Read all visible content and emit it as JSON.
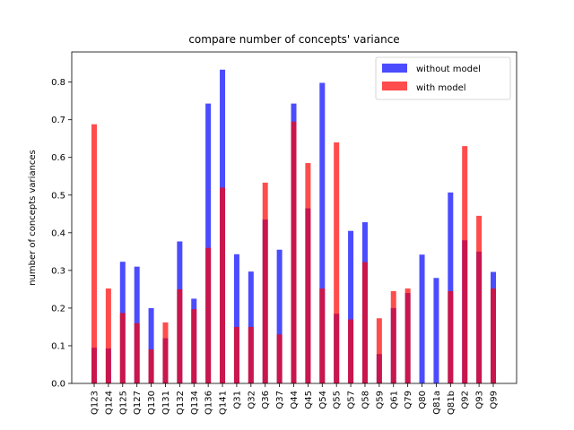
{
  "chart_data": {
    "type": "bar",
    "title": "compare number of concepts' variance",
    "xlabel": "",
    "ylabel": "number of concepts variances",
    "ylim": [
      0,
      0.88
    ],
    "yticks": [
      0.0,
      0.1,
      0.2,
      0.3,
      0.4,
      0.5,
      0.6,
      0.7,
      0.8
    ],
    "ytick_labels": [
      "0.0",
      "0.1",
      "0.2",
      "0.3",
      "0.4",
      "0.5",
      "0.6",
      "0.7",
      "0.8"
    ],
    "grid": false,
    "legend_position": "top-right",
    "categories": [
      "Q123",
      "Q124",
      "Q125",
      "Q127",
      "Q130",
      "Q131",
      "Q132",
      "Q134",
      "Q136",
      "Q141",
      "Q31",
      "Q32",
      "Q36",
      "Q37",
      "Q44",
      "Q45",
      "Q54",
      "Q55",
      "Q57",
      "Q58",
      "Q59",
      "Q61",
      "Q79",
      "Q80",
      "Q81a",
      "Q81b",
      "Q92",
      "Q93",
      "Q99"
    ],
    "series": [
      {
        "name": "without model",
        "color": "#0000ff",
        "opacity": 0.7,
        "values": [
          0.095,
          0.093,
          0.323,
          0.31,
          0.2,
          0.12,
          0.377,
          0.225,
          0.743,
          0.833,
          0.343,
          0.297,
          0.435,
          0.355,
          0.743,
          0.465,
          0.798,
          0.185,
          0.405,
          0.428,
          0.078,
          0.2,
          0.24,
          0.342,
          0.28,
          0.507,
          0.38,
          0.35,
          0.296
        ]
      },
      {
        "name": "with model",
        "color": "#ff0000",
        "opacity": 0.7,
        "values": [
          0.688,
          0.252,
          0.187,
          0.16,
          0.09,
          0.162,
          0.25,
          0.197,
          0.36,
          0.52,
          0.15,
          0.15,
          0.533,
          0.13,
          0.695,
          0.585,
          0.252,
          0.64,
          0.17,
          0.322,
          0.173,
          0.245,
          0.252,
          0.0,
          0.0,
          0.245,
          0.63,
          0.445,
          0.252
        ]
      }
    ]
  }
}
